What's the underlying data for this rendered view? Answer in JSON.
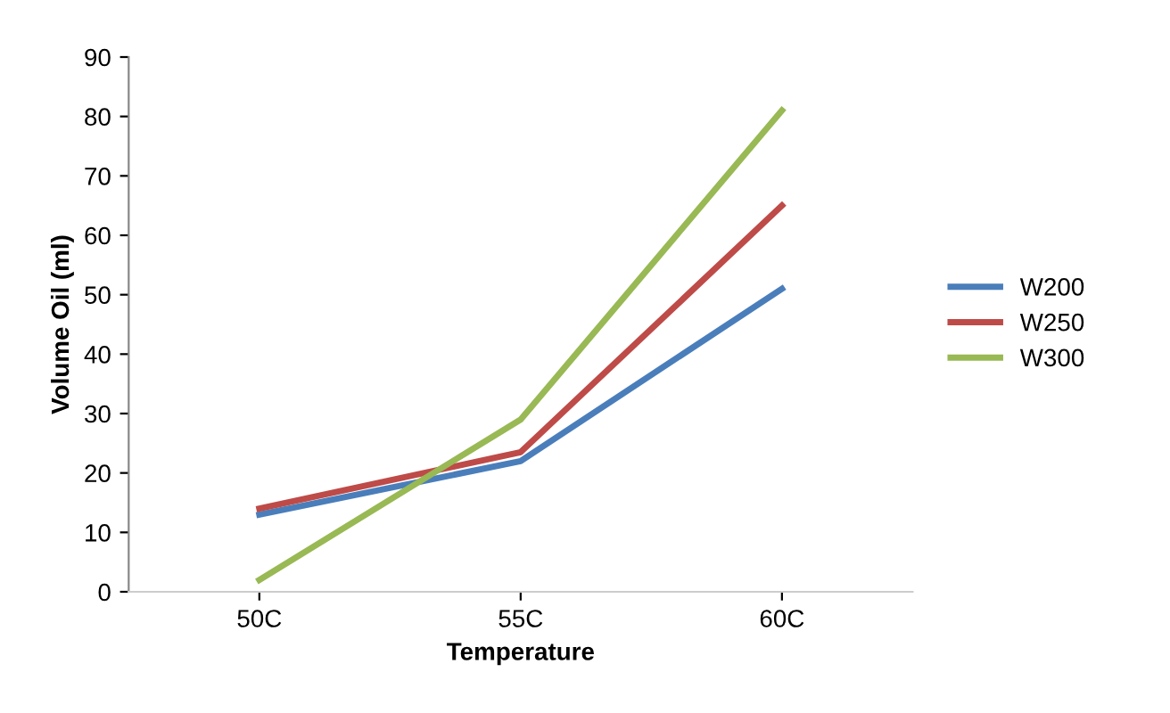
{
  "chart_data": {
    "type": "line",
    "xlabel": "Temperature",
    "ylabel": "Volume Oil (ml)",
    "categories": [
      "50C",
      "55C",
      "60C"
    ],
    "series": [
      {
        "name": "W200",
        "color": "#4a7ebb",
        "values": [
          13,
          22,
          51
        ]
      },
      {
        "name": "W250",
        "color": "#be4b48",
        "values": [
          14,
          23.5,
          65
        ]
      },
      {
        "name": "W300",
        "color": "#98b954",
        "values": [
          2,
          29,
          81
        ]
      }
    ],
    "ylim": [
      0,
      90
    ],
    "yticks": [
      0,
      10,
      20,
      30,
      40,
      50,
      60,
      70,
      80,
      90
    ],
    "legend": "right",
    "grid": false,
    "marker": "none",
    "line_style": "solid"
  }
}
